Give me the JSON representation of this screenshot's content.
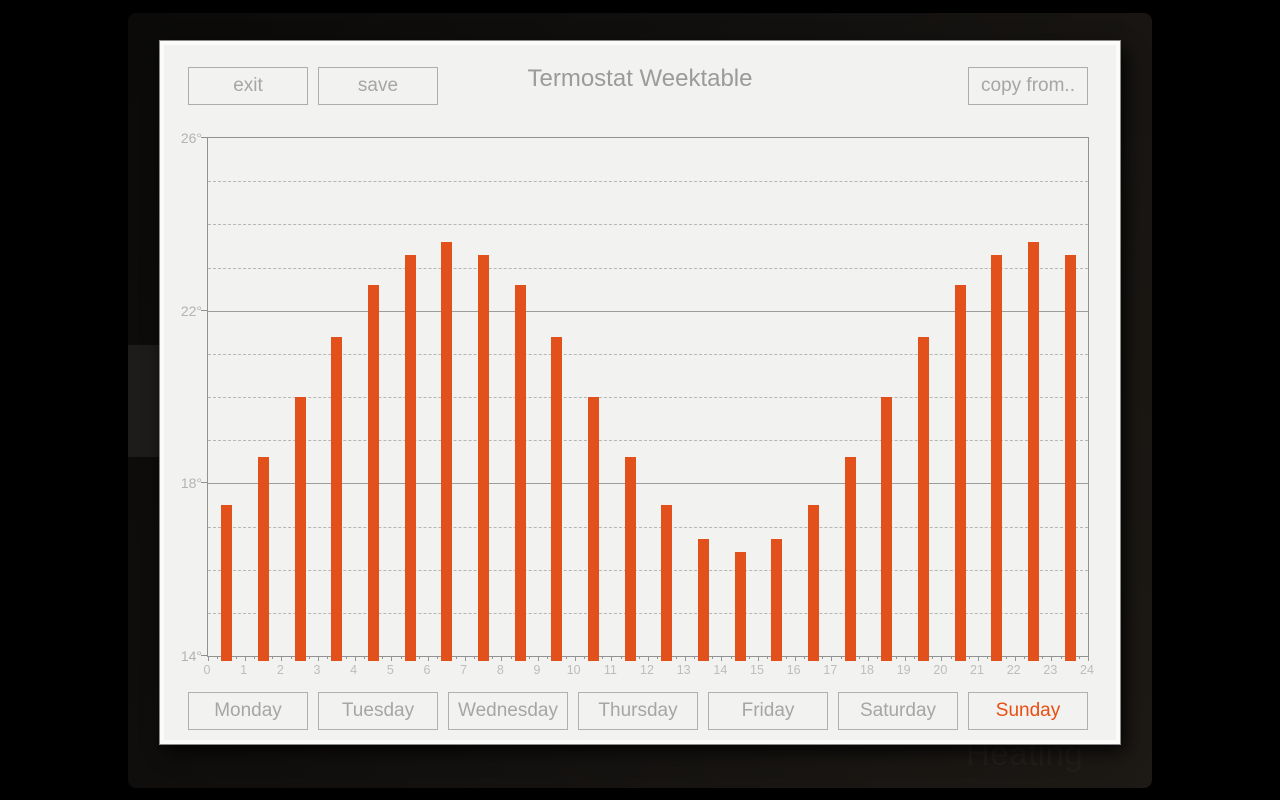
{
  "background": {
    "page_title": "Heating"
  },
  "dialog": {
    "title": "Termostat Weektable",
    "buttons": {
      "exit": "exit",
      "save": "save",
      "copy_from": "copy from.."
    }
  },
  "days": [
    {
      "label": "Monday",
      "selected": false
    },
    {
      "label": "Tuesday",
      "selected": false
    },
    {
      "label": "Wednesday",
      "selected": false
    },
    {
      "label": "Thursday",
      "selected": false
    },
    {
      "label": "Friday",
      "selected": false
    },
    {
      "label": "Saturday",
      "selected": false
    },
    {
      "label": "Sunday",
      "selected": true
    }
  ],
  "colors": {
    "bar": "#e2511c",
    "selected_day": "#e94e12",
    "grid_solid": "#9d9d9d",
    "grid_dashed": "#b6b6b6",
    "axis": "#929292"
  },
  "chart_data": {
    "type": "bar",
    "title": "",
    "xlabel": "",
    "ylabel": "",
    "x_hours": [
      0,
      1,
      2,
      3,
      4,
      5,
      6,
      7,
      8,
      9,
      10,
      11,
      12,
      13,
      14,
      15,
      16,
      17,
      18,
      19,
      20,
      21,
      22,
      23
    ],
    "values": [
      17.5,
      18.6,
      20.0,
      21.4,
      22.6,
      23.3,
      23.6,
      23.3,
      22.6,
      21.4,
      20.0,
      18.6,
      17.5,
      16.7,
      16.4,
      16.7,
      17.5,
      18.6,
      20.0,
      21.4,
      22.6,
      23.3,
      23.6,
      23.3
    ],
    "xlim": [
      0,
      24
    ],
    "ylim": [
      14,
      26
    ],
    "x_tick_labels": [
      "0",
      "1",
      "2",
      "3",
      "4",
      "5",
      "6",
      "7",
      "8",
      "9",
      "10",
      "11",
      "12",
      "13",
      "14",
      "15",
      "16",
      "17",
      "18",
      "19",
      "20",
      "21",
      "22",
      "23",
      "24"
    ],
    "y_tick_labels": [
      {
        "value": 26,
        "label": "26°"
      },
      {
        "value": 22,
        "label": "22°"
      },
      {
        "value": 18,
        "label": "18°"
      },
      {
        "value": 14,
        "label": "14°"
      }
    ],
    "solid_gridlines": [
      26,
      22,
      18,
      14
    ],
    "dashed_gridlines": [
      15,
      16,
      17,
      19,
      20,
      21,
      23,
      24,
      25
    ],
    "legend": null,
    "grid": true
  }
}
